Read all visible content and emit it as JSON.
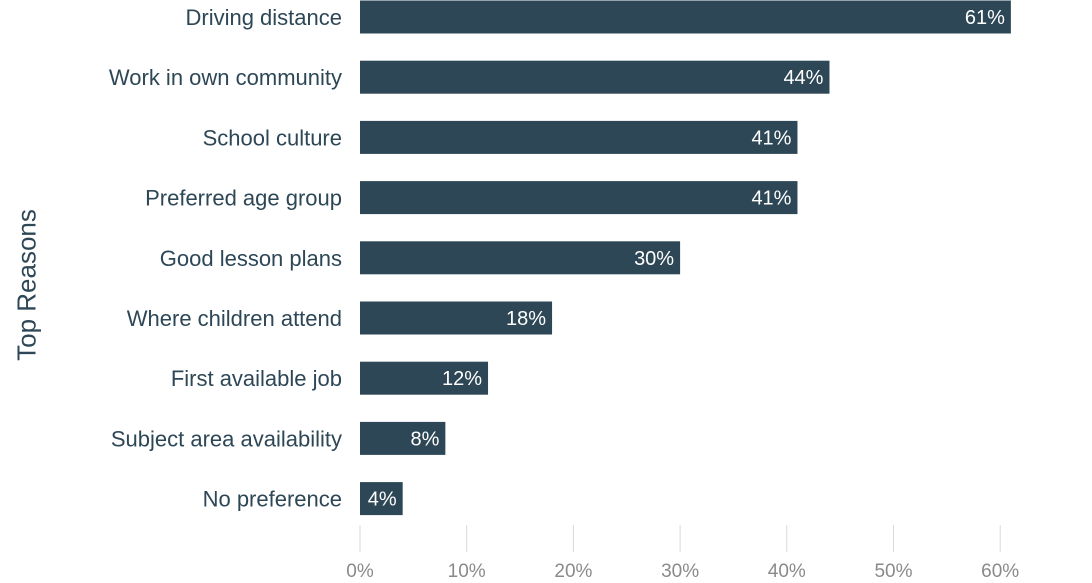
{
  "chart_data": {
    "type": "bar",
    "orientation": "horizontal",
    "title": "",
    "xlabel": "",
    "ylabel": "Top Reasons",
    "categories": [
      "Driving distance",
      "Work in own community",
      "School culture",
      "Preferred age group",
      "Good lesson plans",
      "Where children attend",
      "First available job",
      "Subject area availability",
      "No preference"
    ],
    "values": [
      61,
      44,
      41,
      41,
      30,
      18,
      12,
      8,
      4
    ],
    "value_labels": [
      "61%",
      "44%",
      "41%",
      "41%",
      "30%",
      "18%",
      "12%",
      "8%",
      "4%"
    ],
    "xlim": [
      0,
      60
    ],
    "xticks": [
      0,
      10,
      20,
      30,
      40,
      50,
      60
    ],
    "xtick_labels": [
      "0%",
      "10%",
      "20%",
      "30%",
      "40%",
      "50%",
      "60%"
    ],
    "grid": "vertical",
    "legend": "none",
    "colors": {
      "bar": "#2d4756",
      "bar_label": "#ffffff",
      "category_label": "#2d4756",
      "tick_label": "#8a8a8a",
      "grid": "#d9d9d9"
    }
  }
}
